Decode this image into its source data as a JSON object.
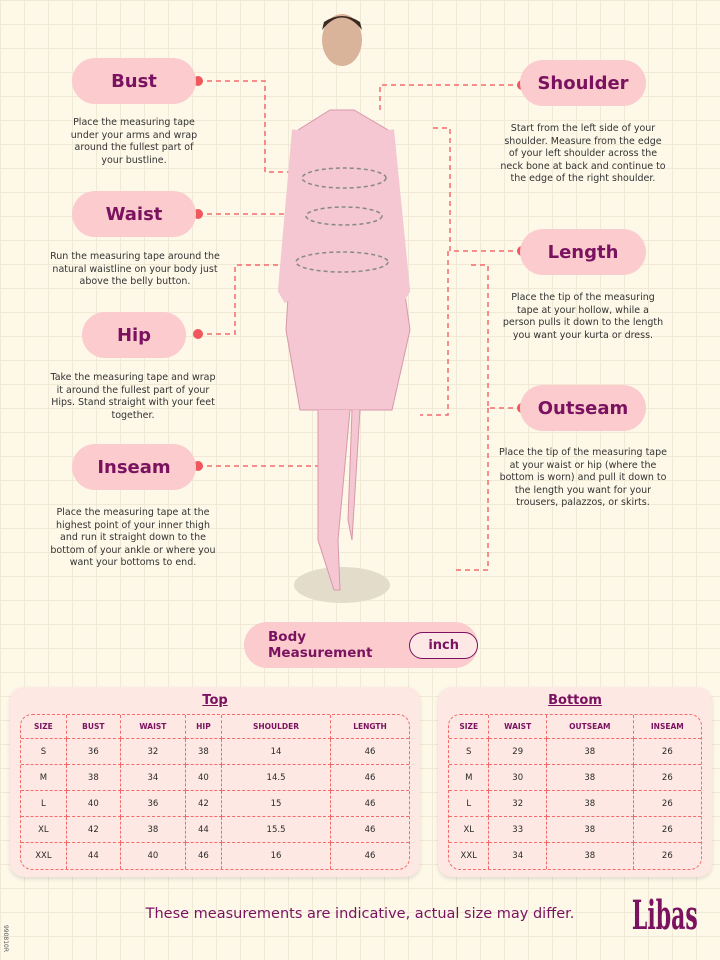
{
  "guide": {
    "bust": {
      "label": "Bust",
      "text": "Place the measuring tape under your arms and wrap around the fullest part of your bustline."
    },
    "waist": {
      "label": "Waist",
      "text": "Run the measuring tape around the natural waistline on your body just above the belly button."
    },
    "hip": {
      "label": "Hip",
      "text": "Take the measuring tape and wrap it around the fullest part of your Hips. Stand straight with your feet together."
    },
    "inseam": {
      "label": "Inseam",
      "text": "Place the measuring tape at the highest point of your inner thigh and run it straight down to the bottom of your ankle or where you want your bottoms to end."
    },
    "shoulder": {
      "label": "Shoulder",
      "text": "Start from the left side of your shoulder. Measure from the edge of your left shoulder across the neck bone at back and continue to the edge of the right shoulder."
    },
    "length": {
      "label": "Length",
      "text": "Place the tip of the measuring tape at your hollow, while a person pulls it down to the length you want your kurta or dress."
    },
    "outseam": {
      "label": "Outseam",
      "text": "Place the tip of the measuring tape at your waist or hip (where the bottom is worn) and pull it down to the length you want for your trousers, palazzos, or skirts."
    }
  },
  "unit_bar": {
    "label": "Body Measurement",
    "unit": "inch"
  },
  "top": {
    "title": "Top",
    "headers": [
      "SIZE",
      "BUST",
      "WAIST",
      "HIP",
      "SHOULDER",
      "LENGTH"
    ],
    "rows": [
      [
        "S",
        "36",
        "32",
        "38",
        "14",
        "46"
      ],
      [
        "M",
        "38",
        "34",
        "40",
        "14.5",
        "46"
      ],
      [
        "L",
        "40",
        "36",
        "42",
        "15",
        "46"
      ],
      [
        "XL",
        "42",
        "38",
        "44",
        "15.5",
        "46"
      ],
      [
        "XXL",
        "44",
        "40",
        "46",
        "16",
        "46"
      ]
    ]
  },
  "bottom": {
    "title": "Bottom",
    "headers": [
      "SIZE",
      "WAIST",
      "OUTSEAM",
      "INSEAM"
    ],
    "rows": [
      [
        "S",
        "29",
        "38",
        "26"
      ],
      [
        "M",
        "30",
        "38",
        "26"
      ],
      [
        "L",
        "32",
        "38",
        "26"
      ],
      [
        "XL",
        "33",
        "38",
        "26"
      ],
      [
        "XXL",
        "34",
        "38",
        "26"
      ]
    ]
  },
  "footer": {
    "note": "These measurements are indicative, actual size may differ.",
    "brand": "Libas",
    "code": "990810R"
  },
  "colors": {
    "accent": "#7a1260",
    "pill": "#fbcbcd",
    "dash": "#f36b6b"
  }
}
